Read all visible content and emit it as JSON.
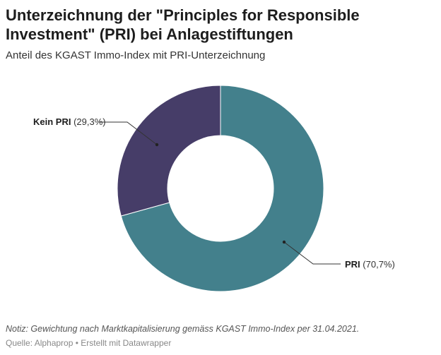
{
  "title": "Unterzeichnung der \"Principles for Responsible Investment\" (PRI) bei Anlagestiftungen",
  "subtitle": "Anteil des KGAST Immo-Index mit PRI-Unterzeichnung",
  "note": "Notiz: Gewichtung nach Marktkapitalisierung gemäss KGAST Immo-Index per 31.04.2021.",
  "source": "Quelle: Alphaprop • Erstellt mit Datawrapper",
  "chart_data": {
    "type": "pie",
    "donut": true,
    "title": "Unterzeichnung der \"Principles for Responsible Investment\" (PRI) bei Anlagestiftungen",
    "slices": [
      {
        "name": "PRI",
        "value": 70.7,
        "value_label": "(70,7%)",
        "color": "#43808c"
      },
      {
        "name": "Kein PRI",
        "value": 29.3,
        "value_label": "(29,3%)",
        "color": "#463d68"
      }
    ]
  }
}
